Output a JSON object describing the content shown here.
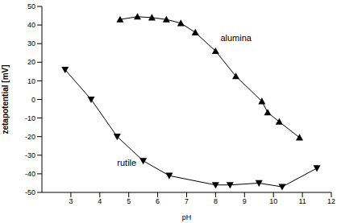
{
  "chart_data": {
    "type": "line",
    "x_label": "pH",
    "y_label": "zetapotential [mV]",
    "xlim": [
      2,
      12
    ],
    "xticks": [
      3,
      4,
      5,
      6,
      7,
      8,
      9,
      10,
      11,
      12
    ],
    "ylim": [
      -50,
      50
    ],
    "yticks": [
      -50,
      -40,
      -30,
      -20,
      -10,
      0,
      10,
      20,
      30,
      40,
      50
    ],
    "grid": false,
    "series": [
      {
        "name": "alumina",
        "color": "#000000",
        "marker": "triangle-up",
        "x": [
          4.7,
          5.3,
          5.8,
          6.3,
          6.8,
          7.3,
          8.0,
          8.7,
          9.6,
          9.8,
          10.2,
          10.9
        ],
        "values": [
          43,
          44.5,
          44,
          43,
          41,
          36,
          26,
          12.5,
          -1,
          -7,
          -12,
          -20.5
        ]
      },
      {
        "name": "rutile",
        "color": "#000000",
        "marker": "triangle-down",
        "x": [
          2.8,
          3.7,
          4.6,
          5.5,
          6.4,
          8.0,
          8.5,
          9.5,
          10.3,
          11.5
        ],
        "values": [
          16,
          0,
          -20,
          -33,
          -41,
          -46,
          -46,
          -45,
          -47,
          -37
        ]
      }
    ]
  }
}
